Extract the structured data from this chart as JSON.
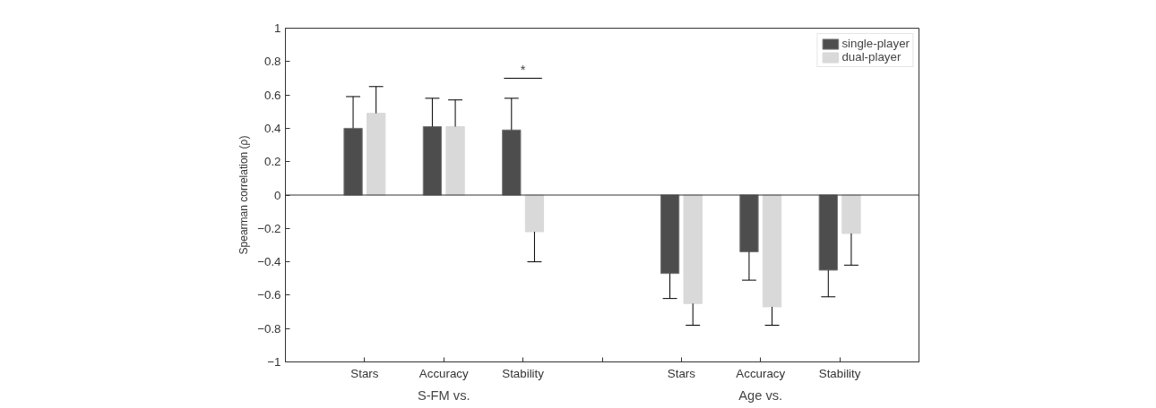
{
  "chart_data": {
    "type": "bar",
    "ylabel": "Spearman correlation (ρ)",
    "categories": [
      "Stars",
      "Accuracy",
      "Stability",
      null,
      "Stars",
      "Accuracy",
      "Stability"
    ],
    "series": [
      {
        "name": "single-player",
        "color": "#4d4d4d",
        "values": [
          0.4,
          0.41,
          0.39,
          null,
          -0.47,
          -0.34,
          -0.45
        ],
        "errors": [
          [
            0.4,
            0.59
          ],
          [
            0.41,
            0.58
          ],
          [
            0.39,
            0.58
          ],
          null,
          [
            -0.62,
            -0.47
          ],
          [
            -0.51,
            -0.34
          ],
          [
            -0.61,
            -0.45
          ]
        ]
      },
      {
        "name": "dual-player",
        "color": "#d9d9d9",
        "values": [
          0.49,
          0.41,
          -0.22,
          null,
          -0.65,
          -0.67,
          -0.23
        ],
        "errors": [
          [
            0.49,
            0.65
          ],
          [
            0.41,
            0.57
          ],
          [
            -0.4,
            -0.22
          ],
          null,
          [
            -0.78,
            -0.65
          ],
          [
            -0.78,
            -0.67
          ],
          [
            -0.42,
            -0.23
          ]
        ]
      }
    ],
    "ylim": [
      -1,
      1
    ],
    "yticks": [
      -1,
      -0.8,
      -0.6,
      -0.4,
      -0.2,
      0,
      0.2,
      0.4,
      0.6,
      0.8,
      1
    ],
    "ref_lines": [
      {
        "axis": "y",
        "value": 0,
        "color": "#333333"
      }
    ],
    "annotations": [
      "*",
      "S-FM vs.",
      "Age vs."
    ],
    "grid": false,
    "legend": "top right"
  }
}
